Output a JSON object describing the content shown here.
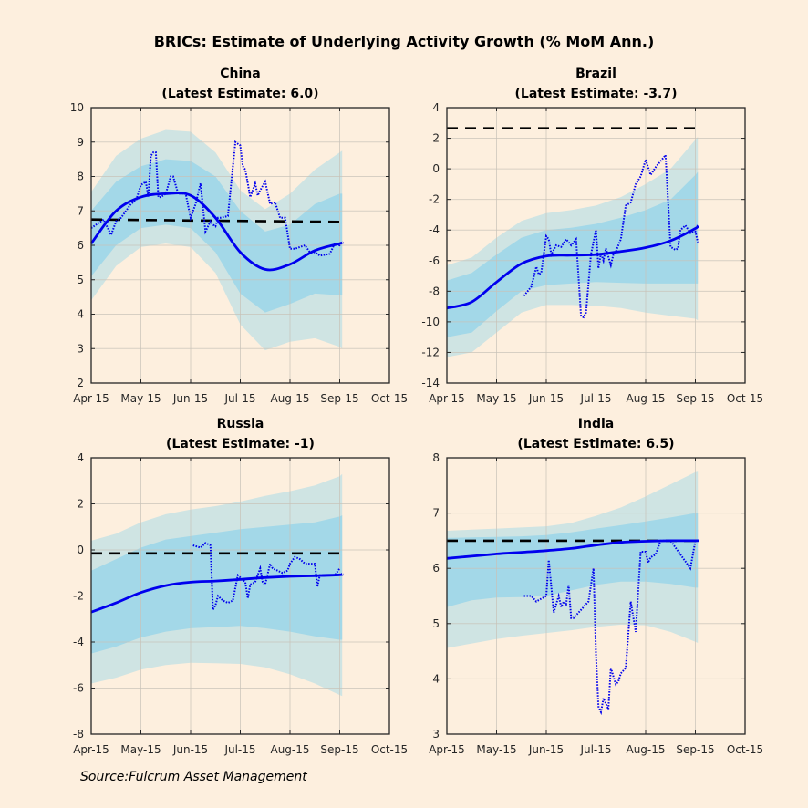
{
  "figure": {
    "title": "BRICs: Estimate of Underlying Activity Growth (% MoM Ann.)",
    "source": "Source:Fulcrum Asset Management",
    "colors": {
      "background": "#fdefde",
      "outer_band": "#cfe4e3",
      "inner_band": "#a3d8e8",
      "estimate": "#0000ee",
      "raw": "#0000ee",
      "trend": "#000000",
      "axis": "#262626",
      "grid": "#c8c2b8"
    }
  },
  "chart_data": [
    {
      "type": "area",
      "name": "China",
      "title": "China",
      "subtitle": "(Latest Estimate: 6.0)",
      "xlabel": "",
      "ylabel": "",
      "x_ticks": [
        "Apr-15",
        "May-15",
        "Jun-15",
        "Jul-15",
        "Aug-15",
        "Sep-15",
        "Oct-15"
      ],
      "xlim": [
        0,
        6
      ],
      "ylim": [
        2,
        10
      ],
      "y_ticks": [
        2,
        3,
        4,
        5,
        6,
        7,
        8,
        9,
        10
      ],
      "grid": true,
      "trend": 6.75,
      "trend_end": 6.68,
      "x": [
        0,
        0.5,
        1,
        1.5,
        2,
        2.5,
        3,
        3.5,
        4,
        4.5,
        5,
        5.05
      ],
      "estimate": [
        6.05,
        7.0,
        7.4,
        7.5,
        7.45,
        6.8,
        5.8,
        5.3,
        5.45,
        5.85,
        6.05,
        6.07
      ],
      "inner_upper": [
        7.0,
        7.85,
        8.3,
        8.5,
        8.45,
        8.0,
        7.0,
        6.4,
        6.6,
        7.2,
        7.5,
        7.5
      ],
      "inner_lower": [
        5.1,
        6.0,
        6.5,
        6.6,
        6.5,
        5.8,
        4.6,
        4.05,
        4.3,
        4.6,
        4.55,
        4.55
      ],
      "outer_upper": [
        7.55,
        8.6,
        9.1,
        9.35,
        9.3,
        8.7,
        7.6,
        7.05,
        7.5,
        8.2,
        8.7,
        8.75
      ],
      "outer_lower": [
        4.4,
        5.4,
        5.95,
        6.05,
        5.95,
        5.2,
        3.7,
        2.95,
        3.2,
        3.3,
        3.05,
        3.0
      ],
      "raw_x": [
        0,
        0.25,
        0.4,
        0.5,
        0.6,
        0.8,
        0.9,
        1.0,
        1.1,
        1.15,
        1.2,
        1.25,
        1.3,
        1.35,
        1.4,
        1.5,
        1.6,
        1.65,
        1.75,
        1.9,
        2.0,
        2.1,
        2.2,
        2.3,
        2.4,
        2.45,
        2.5,
        2.55,
        2.6,
        2.75,
        2.9,
        3.0,
        3.05,
        3.1,
        3.2,
        3.3,
        3.35,
        3.4,
        3.5,
        3.6,
        3.7,
        3.8,
        3.9,
        4.0,
        4.1,
        4.3,
        4.4,
        4.5,
        4.6,
        4.8,
        4.9,
        5.0,
        5.05
      ],
      "raw": [
        6.5,
        6.75,
        6.3,
        6.7,
        6.8,
        7.2,
        7.3,
        7.75,
        7.85,
        7.4,
        8.6,
        8.7,
        8.7,
        7.4,
        7.4,
        7.5,
        8.0,
        8.0,
        7.5,
        7.5,
        6.8,
        7.2,
        7.8,
        6.4,
        6.7,
        6.6,
        6.55,
        6.8,
        6.8,
        6.85,
        9.0,
        8.9,
        8.3,
        8.2,
        7.4,
        7.8,
        7.45,
        7.6,
        7.85,
        7.2,
        7.25,
        6.8,
        6.8,
        5.9,
        5.9,
        6.0,
        5.8,
        5.8,
        5.7,
        5.75,
        6.05,
        6.0,
        6.1
      ]
    },
    {
      "type": "area",
      "name": "Brazil",
      "title": "Brazil",
      "subtitle": "(Latest Estimate: -3.7)",
      "xlabel": "",
      "ylabel": "",
      "x_ticks": [
        "Apr-15",
        "May-15",
        "Jun-15",
        "Jul-15",
        "Aug-15",
        "Sep-15",
        "Oct-15"
      ],
      "xlim": [
        0,
        6
      ],
      "ylim": [
        -14,
        4
      ],
      "y_ticks": [
        -14,
        -12,
        -10,
        -8,
        -6,
        -4,
        -2,
        0,
        2,
        4
      ],
      "grid": true,
      "trend": 2.65,
      "trend_end": 2.65,
      "x": [
        0,
        0.5,
        1,
        1.5,
        2,
        2.5,
        3,
        3.5,
        4,
        4.5,
        5,
        5.05
      ],
      "estimate": [
        -9.1,
        -8.7,
        -7.4,
        -6.2,
        -5.7,
        -5.65,
        -5.6,
        -5.4,
        -5.15,
        -4.7,
        -3.9,
        -3.7
      ],
      "inner_upper": [
        -7.3,
        -6.8,
        -5.6,
        -4.5,
        -4.0,
        -3.85,
        -3.6,
        -3.2,
        -2.7,
        -2.0,
        -0.4,
        -0.2
      ],
      "inner_lower": [
        -11.0,
        -10.7,
        -9.3,
        -8.0,
        -7.6,
        -7.5,
        -7.4,
        -7.45,
        -7.5,
        -7.5,
        -7.5,
        -7.5
      ],
      "outer_upper": [
        -6.3,
        -5.8,
        -4.5,
        -3.4,
        -2.9,
        -2.7,
        -2.4,
        -1.85,
        -1.0,
        0.0,
        1.9,
        2.1
      ],
      "outer_lower": [
        -12.3,
        -12.0,
        -10.7,
        -9.4,
        -8.9,
        -8.9,
        -8.95,
        -9.1,
        -9.4,
        -9.6,
        -9.8,
        -9.9
      ],
      "raw_x": [
        1.55,
        1.7,
        1.8,
        1.85,
        1.9,
        2.0,
        2.05,
        2.1,
        2.2,
        2.3,
        2.4,
        2.5,
        2.6,
        2.7,
        2.75,
        2.8,
        2.9,
        3.0,
        3.05,
        3.1,
        3.15,
        3.2,
        3.3,
        3.35,
        3.4,
        3.5,
        3.6,
        3.7,
        3.8,
        3.9,
        4.0,
        4.1,
        4.2,
        4.3,
        4.4,
        4.5,
        4.6,
        4.65,
        4.7,
        4.8,
        4.9,
        5.0,
        5.05
      ],
      "raw": [
        -8.3,
        -7.7,
        -6.4,
        -6.9,
        -6.8,
        -4.4,
        -4.6,
        -5.6,
        -5.0,
        -5.1,
        -4.6,
        -5.0,
        -4.6,
        -9.6,
        -9.7,
        -9.4,
        -5.6,
        -4.0,
        -6.5,
        -5.5,
        -6.0,
        -5.2,
        -6.3,
        -5.6,
        -5.4,
        -4.6,
        -2.4,
        -2.2,
        -1.0,
        -0.5,
        0.6,
        -0.4,
        0.1,
        0.5,
        0.9,
        -5.1,
        -5.3,
        -5.2,
        -4.0,
        -3.7,
        -4.2,
        -4.1,
        -4.8
      ]
    },
    {
      "type": "area",
      "name": "Russia",
      "title": "Russia",
      "subtitle": "(Latest Estimate: -1)",
      "xlabel": "",
      "ylabel": "",
      "x_ticks": [
        "Apr-15",
        "May-15",
        "Jun-15",
        "Jul-15",
        "Aug-15",
        "Sep-15",
        "Oct-15"
      ],
      "xlim": [
        0,
        6
      ],
      "ylim": [
        -8,
        4
      ],
      "y_ticks": [
        -8,
        -6,
        -4,
        -2,
        0,
        2,
        4
      ],
      "grid": true,
      "trend": -0.15,
      "trend_end": -0.15,
      "x": [
        0,
        0.5,
        1,
        1.5,
        2,
        2.5,
        3,
        3.5,
        4,
        4.5,
        5,
        5.05
      ],
      "estimate": [
        -2.7,
        -2.3,
        -1.85,
        -1.55,
        -1.4,
        -1.35,
        -1.28,
        -1.2,
        -1.15,
        -1.12,
        -1.08,
        -1.05
      ],
      "inner_upper": [
        -0.9,
        -0.4,
        0.1,
        0.45,
        0.6,
        0.75,
        0.9,
        1.0,
        1.1,
        1.2,
        1.45,
        1.5
      ],
      "inner_lower": [
        -4.5,
        -4.2,
        -3.8,
        -3.55,
        -3.4,
        -3.35,
        -3.3,
        -3.4,
        -3.55,
        -3.75,
        -3.9,
        -3.9
      ],
      "outer_upper": [
        0.4,
        0.7,
        1.2,
        1.55,
        1.75,
        1.9,
        2.1,
        2.35,
        2.55,
        2.8,
        3.2,
        3.3
      ],
      "outer_lower": [
        -5.8,
        -5.55,
        -5.2,
        -5.0,
        -4.9,
        -4.92,
        -4.95,
        -5.1,
        -5.4,
        -5.8,
        -6.3,
        -6.35
      ],
      "raw_x": [
        2.05,
        2.2,
        2.3,
        2.4,
        2.45,
        2.5,
        2.55,
        2.65,
        2.75,
        2.85,
        2.95,
        3.0,
        3.1,
        3.15,
        3.2,
        3.3,
        3.4,
        3.45,
        3.5,
        3.6,
        3.65,
        3.75,
        3.85,
        3.95,
        4.0,
        4.1,
        4.2,
        4.3,
        4.4,
        4.5,
        4.55,
        4.6,
        4.7,
        4.8,
        4.9,
        5.0
      ],
      "raw": [
        0.2,
        0.1,
        0.3,
        0.2,
        -2.6,
        -2.4,
        -2.0,
        -2.2,
        -2.3,
        -2.2,
        -1.1,
        -1.2,
        -1.4,
        -2.1,
        -1.5,
        -1.4,
        -0.8,
        -1.4,
        -1.5,
        -0.6,
        -0.8,
        -0.9,
        -1.0,
        -0.9,
        -0.6,
        -0.3,
        -0.4,
        -0.6,
        -0.6,
        -0.6,
        -1.6,
        -1.1,
        -1.1,
        -1.1,
        -1.1,
        -0.8
      ]
    },
    {
      "type": "area",
      "name": "India",
      "title": "India",
      "subtitle": "(Latest Estimate: 6.5)",
      "xlabel": "",
      "ylabel": "",
      "x_ticks": [
        "Apr-15",
        "May-15",
        "Jun-15",
        "Jul-15",
        "Aug-15",
        "Sep-15",
        "Oct-15"
      ],
      "xlim": [
        0,
        6
      ],
      "ylim": [
        3,
        8
      ],
      "y_ticks": [
        3,
        4,
        5,
        6,
        7,
        8
      ],
      "grid": true,
      "trend": 6.5,
      "trend_end": 6.5,
      "x": [
        0,
        0.5,
        1,
        1.5,
        2,
        2.5,
        3,
        3.5,
        4,
        4.5,
        5,
        5.05
      ],
      "estimate": [
        6.18,
        6.22,
        6.26,
        6.29,
        6.32,
        6.36,
        6.42,
        6.47,
        6.49,
        6.5,
        6.5,
        6.5
      ],
      "inner_upper": [
        6.55,
        6.56,
        6.57,
        6.58,
        6.6,
        6.65,
        6.72,
        6.78,
        6.85,
        6.92,
        7.0,
        7.0
      ],
      "inner_lower": [
        5.3,
        5.42,
        5.47,
        5.48,
        5.5,
        5.6,
        5.7,
        5.76,
        5.76,
        5.72,
        5.65,
        5.65
      ],
      "outer_upper": [
        6.68,
        6.7,
        6.72,
        6.74,
        6.76,
        6.82,
        6.95,
        7.1,
        7.3,
        7.52,
        7.74,
        7.75
      ],
      "outer_lower": [
        4.56,
        4.64,
        4.72,
        4.78,
        4.83,
        4.88,
        4.94,
        4.98,
        4.97,
        4.85,
        4.67,
        4.65
      ],
      "raw_x": [
        1.55,
        1.7,
        1.8,
        1.9,
        2.0,
        2.05,
        2.15,
        2.25,
        2.3,
        2.35,
        2.4,
        2.45,
        2.5,
        2.55,
        2.65,
        2.75,
        2.85,
        2.95,
        3.0,
        3.05,
        3.1,
        3.15,
        3.25,
        3.3,
        3.4,
        3.45,
        3.5,
        3.6,
        3.7,
        3.8,
        3.9,
        4.0,
        4.05,
        4.1,
        4.2,
        4.3,
        4.4,
        4.5,
        4.9,
        5.0
      ],
      "raw": [
        5.5,
        5.5,
        5.4,
        5.45,
        5.5,
        6.15,
        5.2,
        5.5,
        5.3,
        5.4,
        5.35,
        5.7,
        5.1,
        5.1,
        5.2,
        5.3,
        5.4,
        6.0,
        4.45,
        3.5,
        3.4,
        3.65,
        3.45,
        4.2,
        3.9,
        3.95,
        4.1,
        4.2,
        5.4,
        4.85,
        6.3,
        6.3,
        6.1,
        6.2,
        6.25,
        6.5,
        6.5,
        6.5,
        6.0,
        6.5
      ]
    }
  ]
}
